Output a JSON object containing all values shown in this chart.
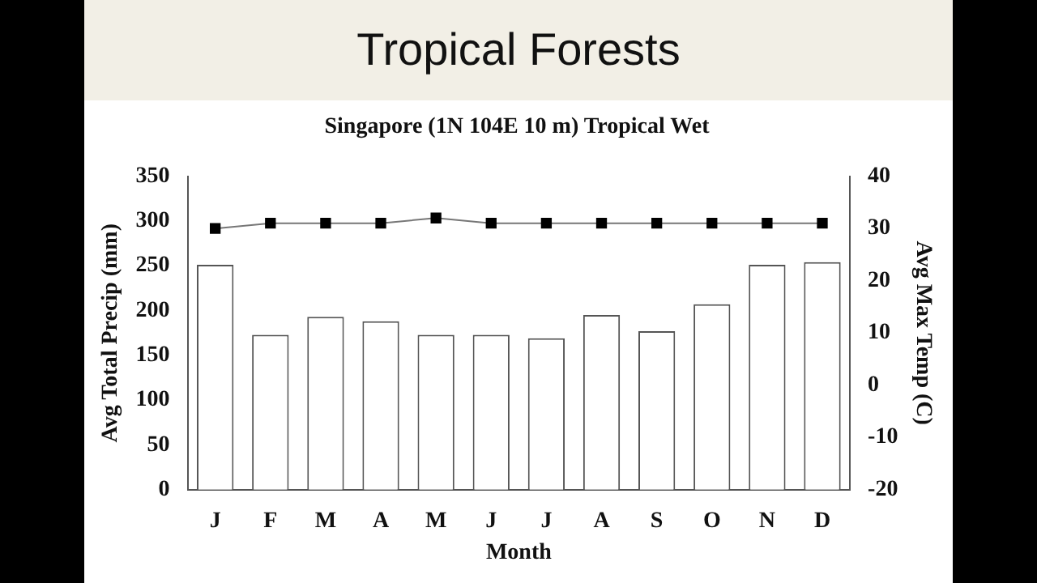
{
  "chart_data": {
    "type": "bar",
    "title": "Tropical Forests",
    "subtitle": "Singapore (1N 104E 10 m) Tropical Wet",
    "xlabel": "Month",
    "ylabel": "Avg Total Precip (mm)",
    "y2label": "Avg Max Temp (C)",
    "categories": [
      "J",
      "F",
      "M",
      "A",
      "M",
      "J",
      "J",
      "A",
      "S",
      "O",
      "N",
      "D"
    ],
    "series": [
      {
        "color": "#ffffff",
        "values": [
          251,
          173,
          193,
          188,
          173,
          173,
          169,
          195,
          177,
          207,
          251,
          254
        ]
      },
      {
        "type": "line",
        "axis": "y2",
        "color": "#000000",
        "marker": "square",
        "values": [
          30,
          31,
          31,
          31,
          32,
          31,
          31,
          31,
          31,
          31,
          31,
          31
        ]
      }
    ],
    "ylim": [
      0,
      350
    ],
    "yticks": [
      0,
      50,
      100,
      150,
      200,
      250,
      300,
      350
    ],
    "y2lim": [
      -20,
      40
    ],
    "y2ticks": [
      -20,
      -10,
      0,
      10,
      20,
      30,
      40
    ],
    "grid": false,
    "legend": false
  }
}
